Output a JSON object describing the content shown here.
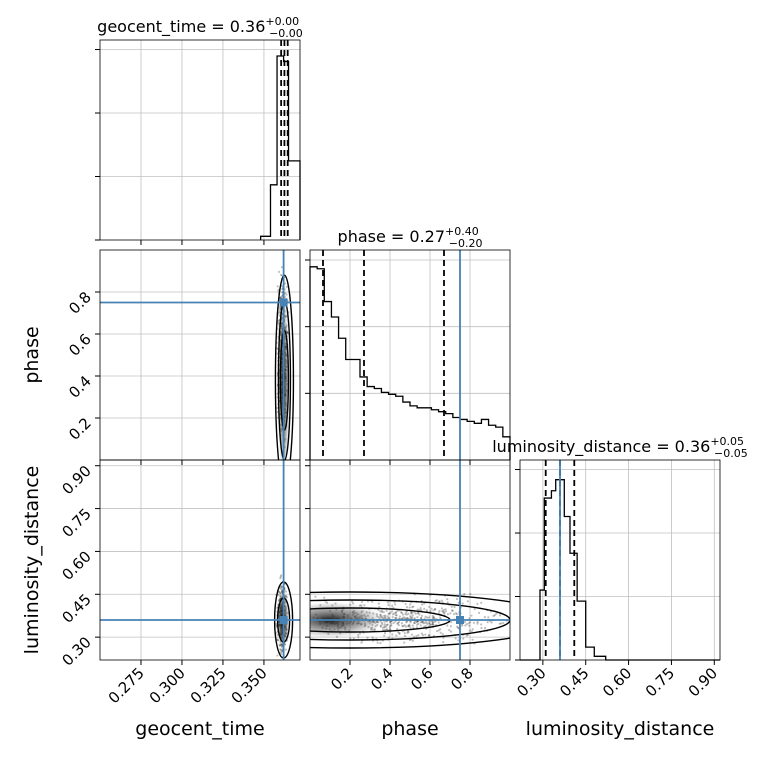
{
  "chart_data": {
    "type": "corner",
    "parameters": [
      "geocent_time",
      "phase",
      "luminosity_distance"
    ],
    "truths": {
      "geocent_time": 0.362,
      "phase": 0.75,
      "luminosity_distance": 0.36
    },
    "colors": {
      "truth": "#4682b4",
      "hist": "#000000",
      "grid": "#c0c0c0"
    },
    "grid": true,
    "marginals": [
      {
        "param": "geocent_time",
        "title_main": "geocent_time = 0.36",
        "title_sup": "+0.00",
        "title_sub": "−0.00",
        "range": [
          0.25,
          0.372
        ],
        "quantiles": [
          0.3605,
          0.3625,
          0.3645
        ],
        "bins": [
          {
            "x0": 0.348,
            "x1": 0.354,
            "h": 0.02
          },
          {
            "x0": 0.354,
            "x1": 0.358,
            "h": 0.3
          },
          {
            "x0": 0.358,
            "x1": 0.362,
            "h": 1.0
          },
          {
            "x0": 0.362,
            "x1": 0.365,
            "h": 0.97
          },
          {
            "x0": 0.365,
            "x1": 0.372,
            "h": 0.43
          }
        ]
      },
      {
        "param": "phase",
        "title_main": "phase = 0.27",
        "title_sup": "+0.40",
        "title_sub": "−0.20",
        "range": [
          0.0,
          1.0
        ],
        "quantiles": [
          0.065,
          0.27,
          0.67
        ],
        "counts": [
          1.0,
          0.99,
          0.82,
          0.74,
          0.63,
          0.52,
          0.52,
          0.43,
          0.38,
          0.37,
          0.35,
          0.34,
          0.33,
          0.3,
          0.28,
          0.27,
          0.27,
          0.26,
          0.25,
          0.24,
          0.22,
          0.21,
          0.2,
          0.19,
          0.21,
          0.18,
          0.17,
          0.12
        ]
      },
      {
        "param": "luminosity_distance",
        "title_main": "luminosity_distance = 0.36",
        "title_sup": "+0.05",
        "title_sub": "−0.05",
        "range": [
          0.22,
          0.92
        ],
        "quantiles": [
          0.31,
          0.36,
          0.41
        ],
        "bins": [
          {
            "x0": 0.22,
            "x1": 0.29,
            "h": 0.0
          },
          {
            "x0": 0.29,
            "x1": 0.305,
            "h": 0.38
          },
          {
            "x0": 0.305,
            "x1": 0.33,
            "h": 0.88
          },
          {
            "x0": 0.33,
            "x1": 0.345,
            "h": 0.92
          },
          {
            "x0": 0.345,
            "x1": 0.375,
            "h": 0.98
          },
          {
            "x0": 0.375,
            "x1": 0.395,
            "h": 0.78
          },
          {
            "x0": 0.395,
            "x1": 0.42,
            "h": 0.58
          },
          {
            "x0": 0.42,
            "x1": 0.45,
            "h": 0.32
          },
          {
            "x0": 0.45,
            "x1": 0.48,
            "h": 0.07
          },
          {
            "x0": 0.48,
            "x1": 0.52,
            "h": 0.02
          },
          {
            "x0": 0.52,
            "x1": 0.92,
            "h": 0.0
          }
        ]
      }
    ],
    "axes": {
      "geocent_time": {
        "label": "geocent_time",
        "ticks": [
          0.275,
          0.3,
          0.325,
          0.35
        ],
        "tick_labels": [
          "0.275",
          "0.300",
          "0.325",
          "0.350"
        ]
      },
      "phase": {
        "label": "phase",
        "ticks": [
          0.2,
          0.4,
          0.6,
          0.8
        ],
        "tick_labels": [
          "0.2",
          "0.4",
          "0.6",
          "0.8"
        ]
      },
      "luminosity_distance": {
        "label": "luminosity_distance",
        "ticks": [
          0.3,
          0.45,
          0.6,
          0.75,
          0.9
        ],
        "tick_labels": [
          "0.30",
          "0.45",
          "0.60",
          "0.75",
          "0.90"
        ]
      }
    }
  }
}
